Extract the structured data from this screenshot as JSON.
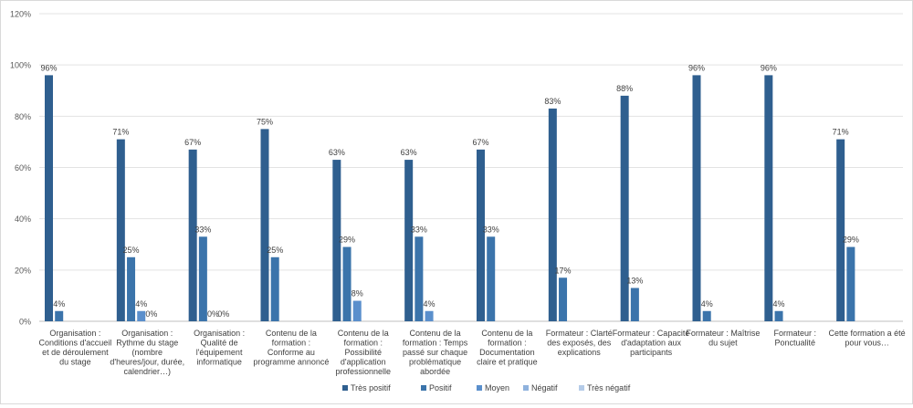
{
  "chart_data": {
    "type": "bar",
    "categories": [
      [
        "Organisation :",
        "Conditions d'accueil",
        "et de déroulement",
        "du stage"
      ],
      [
        "Organisation :",
        "Rythme du stage",
        "(nombre",
        "d'heures/jour, durée,",
        "calendrier…)"
      ],
      [
        "Organisation :",
        "Qualité de",
        "l'équipement",
        "informatique"
      ],
      [
        "Contenu de la",
        "formation :",
        "Conforme au",
        "programme annoncé"
      ],
      [
        "Contenu de la",
        "formation :",
        "Possibilité",
        "d'application",
        "professionnelle"
      ],
      [
        "Contenu de la",
        "formation : Temps",
        "passé sur chaque",
        "problématique",
        "abordée"
      ],
      [
        "Contenu de la",
        "formation :",
        "Documentation",
        "claire et pratique"
      ],
      [
        "Formateur : Clarté",
        "des exposés, des",
        "explications"
      ],
      [
        "Formateur : Capacité",
        "d'adaptation aux",
        "participants"
      ],
      [
        "Formateur : Maîtrise",
        "du sujet"
      ],
      [
        "Formateur :",
        "Ponctualité"
      ],
      [
        "Cette formation a été",
        "pour vous…"
      ]
    ],
    "series": [
      {
        "name": "Très positif",
        "color": "#2f5f8f",
        "values": [
          96,
          71,
          67,
          75,
          63,
          63,
          67,
          83,
          88,
          96,
          96,
          71
        ],
        "labels": [
          "96%",
          "71%",
          "67%",
          "75%",
          "63%",
          "63%",
          "67%",
          "83%",
          "88%",
          "96%",
          "96%",
          "71%"
        ]
      },
      {
        "name": "Positif",
        "color": "#3b74ab",
        "values": [
          4,
          25,
          33,
          25,
          29,
          33,
          33,
          17,
          13,
          4,
          4,
          29
        ],
        "labels": [
          "4%",
          "25%",
          "33%",
          "25%",
          "29%",
          "33%",
          "33%",
          "17%",
          "13%",
          "4%",
          "4%",
          "29%"
        ]
      },
      {
        "name": "Moyen",
        "color": "#5a8fcc",
        "values": [
          0,
          4,
          0,
          0,
          8,
          4,
          0,
          0,
          0,
          0,
          0,
          0
        ],
        "labels": [
          "",
          "4%",
          "0%",
          "",
          "8%",
          "4%",
          "",
          "",
          "",
          "",
          "",
          ""
        ]
      },
      {
        "name": "Négatif",
        "color": "#8fb2dd",
        "values": [
          0,
          0,
          0,
          0,
          0,
          0,
          0,
          0,
          0,
          0,
          0,
          0
        ],
        "labels": [
          "",
          "0%",
          "0%",
          "",
          "",
          "",
          "",
          "",
          "",
          "",
          "",
          ""
        ]
      },
      {
        "name": "Très négatif",
        "color": "#b4cbe8",
        "values": [
          0,
          0,
          0,
          0,
          0,
          0,
          0,
          0,
          0,
          0,
          0,
          0
        ],
        "labels": [
          "",
          "",
          "",
          "",
          "",
          "",
          "",
          "",
          "",
          "",
          "",
          ""
        ]
      }
    ],
    "yticks": [
      "0%",
      "20%",
      "40%",
      "60%",
      "80%",
      "100%",
      "120%"
    ],
    "ylim": [
      0,
      120
    ],
    "grid": true,
    "legend_position": "bottom"
  }
}
